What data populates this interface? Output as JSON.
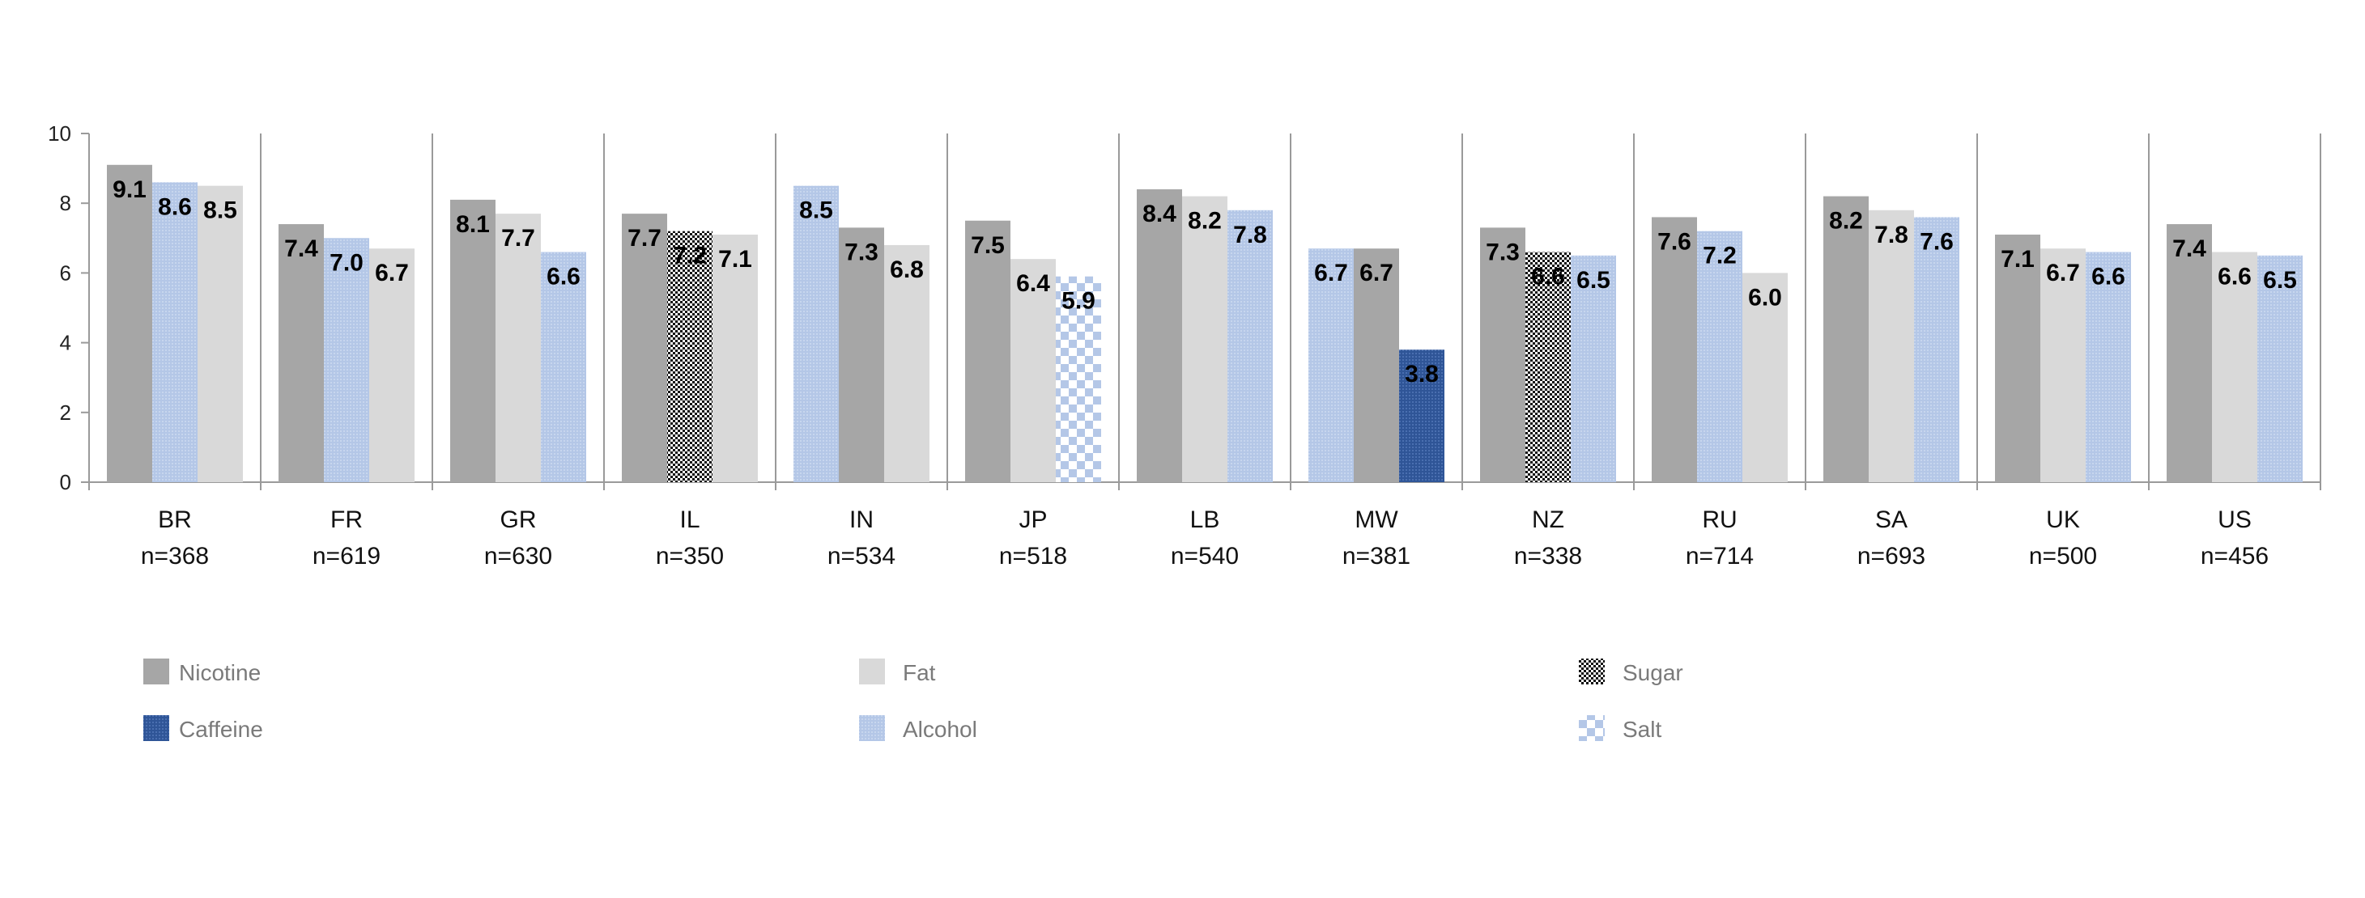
{
  "chart_data": {
    "type": "bar",
    "title": "",
    "xlabel": "",
    "ylabel": "",
    "ylim": [
      0,
      10
    ],
    "yticks": [
      0,
      2,
      4,
      6,
      8,
      10
    ],
    "legend_position": "bottom",
    "groups": [
      {
        "label": "BR",
        "n": "n=368",
        "bars": [
          {
            "series": "Nicotine",
            "value": 9.1,
            "label": "9.1"
          },
          {
            "series": "Alcohol",
            "value": 8.6,
            "label": "8.6"
          },
          {
            "series": "Fat",
            "value": 8.5,
            "label": "8.5"
          }
        ]
      },
      {
        "label": "FR",
        "n": "n=619",
        "bars": [
          {
            "series": "Nicotine",
            "value": 7.4,
            "label": "7.4"
          },
          {
            "series": "Alcohol",
            "value": 7.0,
            "label": "7.0"
          },
          {
            "series": "Fat",
            "value": 6.7,
            "label": "6.7"
          }
        ]
      },
      {
        "label": "GR",
        "n": "n=630",
        "bars": [
          {
            "series": "Nicotine",
            "value": 8.1,
            "label": "8.1"
          },
          {
            "series": "Fat",
            "value": 7.7,
            "label": "7.7"
          },
          {
            "series": "Alcohol",
            "value": 6.6,
            "label": "6.6"
          }
        ]
      },
      {
        "label": "IL",
        "n": "n=350",
        "bars": [
          {
            "series": "Nicotine",
            "value": 7.7,
            "label": "7.7"
          },
          {
            "series": "Sugar",
            "value": 7.2,
            "label": "7.2"
          },
          {
            "series": "Fat",
            "value": 7.1,
            "label": "7.1"
          }
        ]
      },
      {
        "label": "IN",
        "n": "n=534",
        "bars": [
          {
            "series": "Alcohol",
            "value": 8.5,
            "label": "8.5"
          },
          {
            "series": "Nicotine",
            "value": 7.3,
            "label": "7.3"
          },
          {
            "series": "Fat",
            "value": 6.8,
            "label": "6.8"
          }
        ]
      },
      {
        "label": "JP",
        "n": "n=518",
        "bars": [
          {
            "series": "Nicotine",
            "value": 7.5,
            "label": "7.5"
          },
          {
            "series": "Fat",
            "value": 6.4,
            "label": "6.4"
          },
          {
            "series": "Salt",
            "value": 5.9,
            "label": "5.9"
          }
        ]
      },
      {
        "label": "LB",
        "n": "n=540",
        "bars": [
          {
            "series": "Nicotine",
            "value": 8.4,
            "label": "8.4"
          },
          {
            "series": "Fat",
            "value": 8.2,
            "label": "8.2"
          },
          {
            "series": "Alcohol",
            "value": 7.8,
            "label": "7.8"
          }
        ]
      },
      {
        "label": "MW",
        "n": "n=381",
        "bars": [
          {
            "series": "Alcohol",
            "value": 6.7,
            "label": "6.7"
          },
          {
            "series": "Nicotine",
            "value": 6.7,
            "label": "6.7"
          },
          {
            "series": "Caffeine",
            "value": 3.8,
            "label": "3.8"
          }
        ]
      },
      {
        "label": "NZ",
        "n": "n=338",
        "bars": [
          {
            "series": "Nicotine",
            "value": 7.3,
            "label": "7.3"
          },
          {
            "series": "Sugar",
            "value": 6.6,
            "label": "6.6"
          },
          {
            "series": "Alcohol",
            "value": 6.5,
            "label": "6.5"
          }
        ]
      },
      {
        "label": "RU",
        "n": "n=714",
        "bars": [
          {
            "series": "Nicotine",
            "value": 7.6,
            "label": "7.6"
          },
          {
            "series": "Alcohol",
            "value": 7.2,
            "label": "7.2"
          },
          {
            "series": "Fat",
            "value": 6.0,
            "label": "6.0"
          }
        ]
      },
      {
        "label": "SA",
        "n": "n=693",
        "bars": [
          {
            "series": "Nicotine",
            "value": 8.2,
            "label": "8.2"
          },
          {
            "series": "Fat",
            "value": 7.8,
            "label": "7.8"
          },
          {
            "series": "Alcohol",
            "value": 7.6,
            "label": "7.6"
          }
        ]
      },
      {
        "label": "UK",
        "n": "n=500",
        "bars": [
          {
            "series": "Nicotine",
            "value": 7.1,
            "label": "7.1"
          },
          {
            "series": "Fat",
            "value": 6.7,
            "label": "6.7"
          },
          {
            "series": "Alcohol",
            "value": 6.6,
            "label": "6.6"
          }
        ]
      },
      {
        "label": "US",
        "n": "n=456",
        "bars": [
          {
            "series": "Nicotine",
            "value": 7.4,
            "label": "7.4"
          },
          {
            "series": "Fat",
            "value": 6.6,
            "label": "6.6"
          },
          {
            "series": "Alcohol",
            "value": 6.5,
            "label": "6.5"
          }
        ]
      }
    ],
    "legend": [
      {
        "name": "Nicotine",
        "color": "#a6a6a6",
        "pattern": "solid"
      },
      {
        "name": "Fat",
        "color": "#d9d9d9",
        "pattern": "solid"
      },
      {
        "name": "Sugar",
        "color": "#1a1a1a",
        "pattern": "checker-dark"
      },
      {
        "name": "Caffeine",
        "color": "#2f5597",
        "pattern": "dotted-navy"
      },
      {
        "name": "Alcohol",
        "color": "#b4c7e7",
        "pattern": "dotted-light"
      },
      {
        "name": "Salt",
        "color": "#b4c7e7",
        "pattern": "checker-light"
      }
    ]
  }
}
